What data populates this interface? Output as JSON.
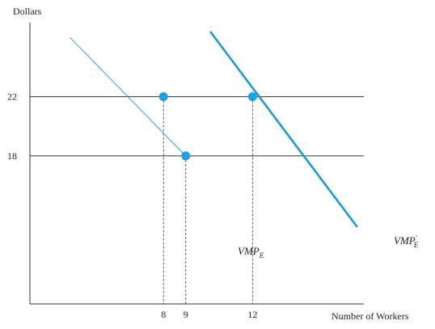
{
  "chart_data": {
    "type": "line",
    "ylabel": "Dollars",
    "xlabel": "Number of Workers",
    "x_ticks": [
      8,
      9,
      12
    ],
    "y_ticks": [
      18,
      22
    ],
    "xlim": [
      2,
      17
    ],
    "ylim": [
      8,
      27
    ],
    "horizontal_lines": [
      22,
      18
    ],
    "series": [
      {
        "name": "VMP_E",
        "label_main": "VMP",
        "label_sub": "E",
        "label_prime": "",
        "color": "#29a3dc",
        "weight": "thin",
        "x": [
          3.8,
          9
        ],
        "y": [
          26,
          18
        ]
      },
      {
        "name": "VMP'_E",
        "label_main": "VMP",
        "label_sub": "E",
        "label_prime": "′",
        "color": "#1b9ad6",
        "weight": "thick",
        "x": [
          10.1,
          16.7
        ],
        "y": [
          26.4,
          13.2
        ]
      }
    ],
    "points": [
      {
        "x": 8,
        "y": 22
      },
      {
        "x": 9,
        "y": 18
      },
      {
        "x": 12,
        "y": 22
      }
    ],
    "point_color": "#19a3e0",
    "grid": false
  }
}
